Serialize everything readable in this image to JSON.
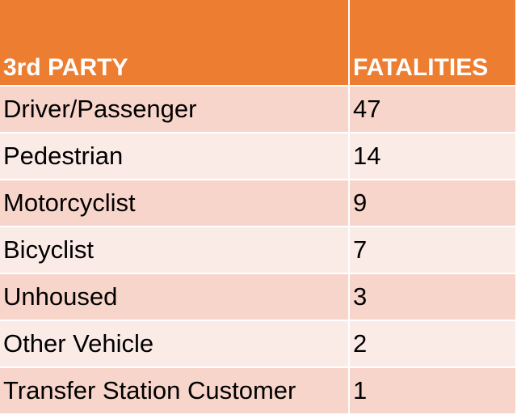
{
  "table": {
    "headers": {
      "party": "3rd PARTY",
      "fatalities": "FATALITIES"
    },
    "rows": [
      {
        "party": "Driver/Passenger",
        "fatalities": "47"
      },
      {
        "party": "Pedestrian",
        "fatalities": "14"
      },
      {
        "party": "Motorcyclist",
        "fatalities": "9"
      },
      {
        "party": "Bicyclist",
        "fatalities": "7"
      },
      {
        "party": "Unhoused",
        "fatalities": "3"
      },
      {
        "party": "Other Vehicle",
        "fatalities": "2"
      },
      {
        "party": "Transfer Station Customer",
        "fatalities": "1"
      }
    ]
  },
  "colors": {
    "header_bg": "#ed7d31",
    "row_odd_bg": "#f8d5ca",
    "row_even_bg": "#fbebe6"
  }
}
